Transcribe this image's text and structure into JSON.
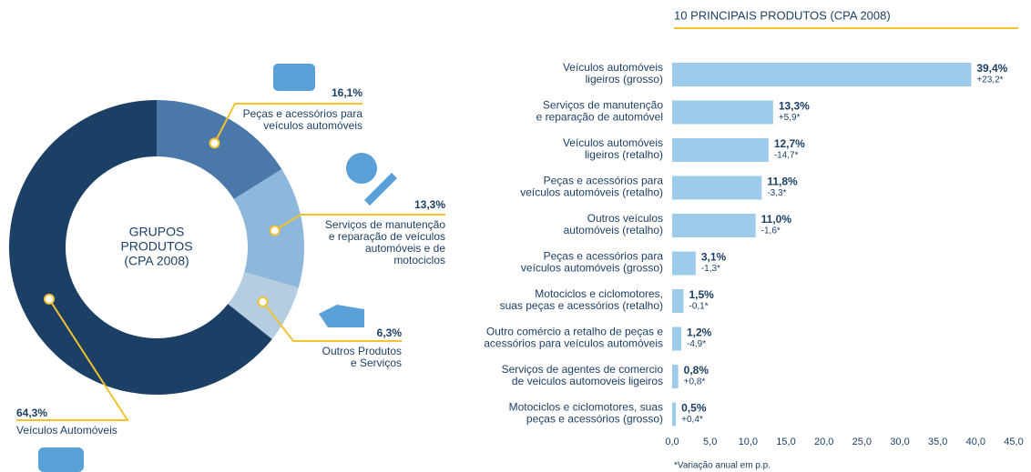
{
  "chart_data": [
    {
      "type": "donut",
      "center_label": [
        "GRUPOS",
        "PRODUTOS",
        "(CPA 2008)"
      ],
      "categories": [
        [
          "Peças e acessórios para",
          "veículos automóveis"
        ],
        [
          "Serviços de manutenção",
          "e reparação de veículos",
          "automóveis e de",
          "motociclos"
        ],
        [
          "Outros Produtos",
          "e Serviços"
        ],
        [
          "Veículos Automóveis"
        ]
      ],
      "values": [
        16.1,
        13.3,
        6.3,
        64.3
      ],
      "value_labels": [
        "16,1%",
        "13,3%",
        "6,3%",
        "64,3%"
      ],
      "colors": [
        "#4a78a8",
        "#8db8dc",
        "#b5cde0",
        "#1c3f66"
      ]
    },
    {
      "type": "hbar",
      "title": "10 PRINCIPAIS PRODUTOS (CPA 2008)",
      "categories": [
        [
          "Veículos automóveis",
          "ligeiros (grosso)"
        ],
        [
          "Serviços de manutenção",
          "e reparação de automóvel"
        ],
        [
          "Veículos automóveis",
          "ligeiros (retalho)"
        ],
        [
          "Peças e acessórios para",
          "veículos automóveis (retalho)"
        ],
        [
          "Outros veículos",
          "automóveis (retalho)"
        ],
        [
          "Peças e acessórios para",
          "veículos automóveis (grosso)"
        ],
        [
          "Motociclos e ciclomotores,",
          "suas peças e acessórios (retalho)"
        ],
        [
          "Outro comércio a retalho de peças e",
          "acessórios para veículos automóveis"
        ],
        [
          "Serviços de agentes de comercio",
          "de veiculos automoveis ligeiros"
        ],
        [
          "Motociclos e ciclomotores, suas",
          "peças e acessórios (grosso)"
        ]
      ],
      "values": [
        39.4,
        13.3,
        12.7,
        11.8,
        11.0,
        3.1,
        1.5,
        1.2,
        0.8,
        0.5
      ],
      "value_labels": [
        "39,4%",
        "13,3%",
        "12,7%",
        "11,8%",
        "11,0%",
        "3,1%",
        "1,5%",
        "1,2%",
        "0,8%",
        "0,5%"
      ],
      "annotations": [
        "+23,2*",
        "+5,9*",
        "-14,7*",
        "-3,3*",
        "-1,6*",
        "-1,3*",
        "-0,1*",
        "-4,9*",
        "+0,8*",
        "+0,4*"
      ],
      "color": "#9dcbeb",
      "xlim": [
        0,
        45
      ],
      "xticks": [
        {
          "value": 0,
          "label": "0,0"
        },
        {
          "value": 5,
          "label": "5,0"
        },
        {
          "value": 10,
          "label": "10,0"
        },
        {
          "value": 15,
          "label": "15,0"
        },
        {
          "value": 20,
          "label": "20,0"
        },
        {
          "value": 25,
          "label": "25,0"
        },
        {
          "value": 30,
          "label": "30,0"
        },
        {
          "value": 35,
          "label": "35,0"
        },
        {
          "value": 40,
          "label": "40,0"
        },
        {
          "value": 45,
          "label": "45,0"
        }
      ],
      "footnote": "*Variação anual em p.p."
    }
  ]
}
